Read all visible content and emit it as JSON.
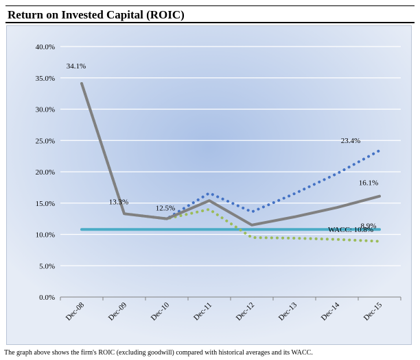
{
  "header": {
    "title": "Return on Invested Capital (ROIC)"
  },
  "caption": "The graph above shows the firm's ROIC (excluding goodwill) compared with historical averages and its WACC.",
  "colors": {
    "roic": "#808080",
    "optimistic": "#4472c4",
    "pessimistic": "#9bbb59",
    "wacc": "#4bacc6",
    "background_center": "#a9c0e6",
    "background_edge": "#e6ecf6"
  },
  "chart_data": {
    "type": "line",
    "title": "",
    "xlabel": "",
    "ylabel": "",
    "categories": [
      "Dec-08",
      "Dec-09",
      "Dec-10",
      "Dec-11",
      "Dec-12",
      "Dec-13",
      "Dec-14",
      "Dec-15"
    ],
    "ylim": [
      0,
      40
    ],
    "yticks": [
      0,
      5,
      10,
      15,
      20,
      25,
      30,
      35,
      40
    ],
    "ytick_labels": [
      "0.0%",
      "5.0%",
      "10.0%",
      "15.0%",
      "20.0%",
      "25.0%",
      "30.0%",
      "35.0%",
      "40.0%"
    ],
    "grid": true,
    "legend": "none",
    "series": [
      {
        "key": "roic",
        "style": "solid",
        "values": [
          34.1,
          13.3,
          12.5,
          15.4,
          11.5,
          12.8,
          14.3,
          16.1
        ]
      },
      {
        "key": "optimistic",
        "style": "dotted",
        "values": [
          34.1,
          13.3,
          12.5,
          16.6,
          13.6,
          16.5,
          19.7,
          23.4
        ]
      },
      {
        "key": "pessimistic",
        "style": "dotted",
        "values": [
          34.1,
          13.3,
          12.5,
          14.0,
          9.5,
          9.4,
          9.2,
          8.9
        ]
      },
      {
        "key": "wacc",
        "style": "solid",
        "values": [
          10.8,
          10.8,
          10.8,
          10.8,
          10.8,
          10.8,
          10.8,
          10.8
        ]
      }
    ],
    "annotations": [
      {
        "text": "34.1%",
        "x": "Dec-08",
        "y": 34.1
      },
      {
        "text": "13.3%",
        "x": "Dec-09",
        "y": 13.3
      },
      {
        "text": "12.5%",
        "x": "Dec-10",
        "y": 12.5
      },
      {
        "text": "23.4%",
        "x": "Dec-15",
        "y": 23.4
      },
      {
        "text": "16.1%",
        "x": "Dec-15",
        "y": 16.1
      },
      {
        "text": "8.9%",
        "x": "Dec-15",
        "y": 8.9
      },
      {
        "text": "WACC: 10.8%",
        "x": "Dec-15",
        "y": 10.8
      }
    ]
  }
}
